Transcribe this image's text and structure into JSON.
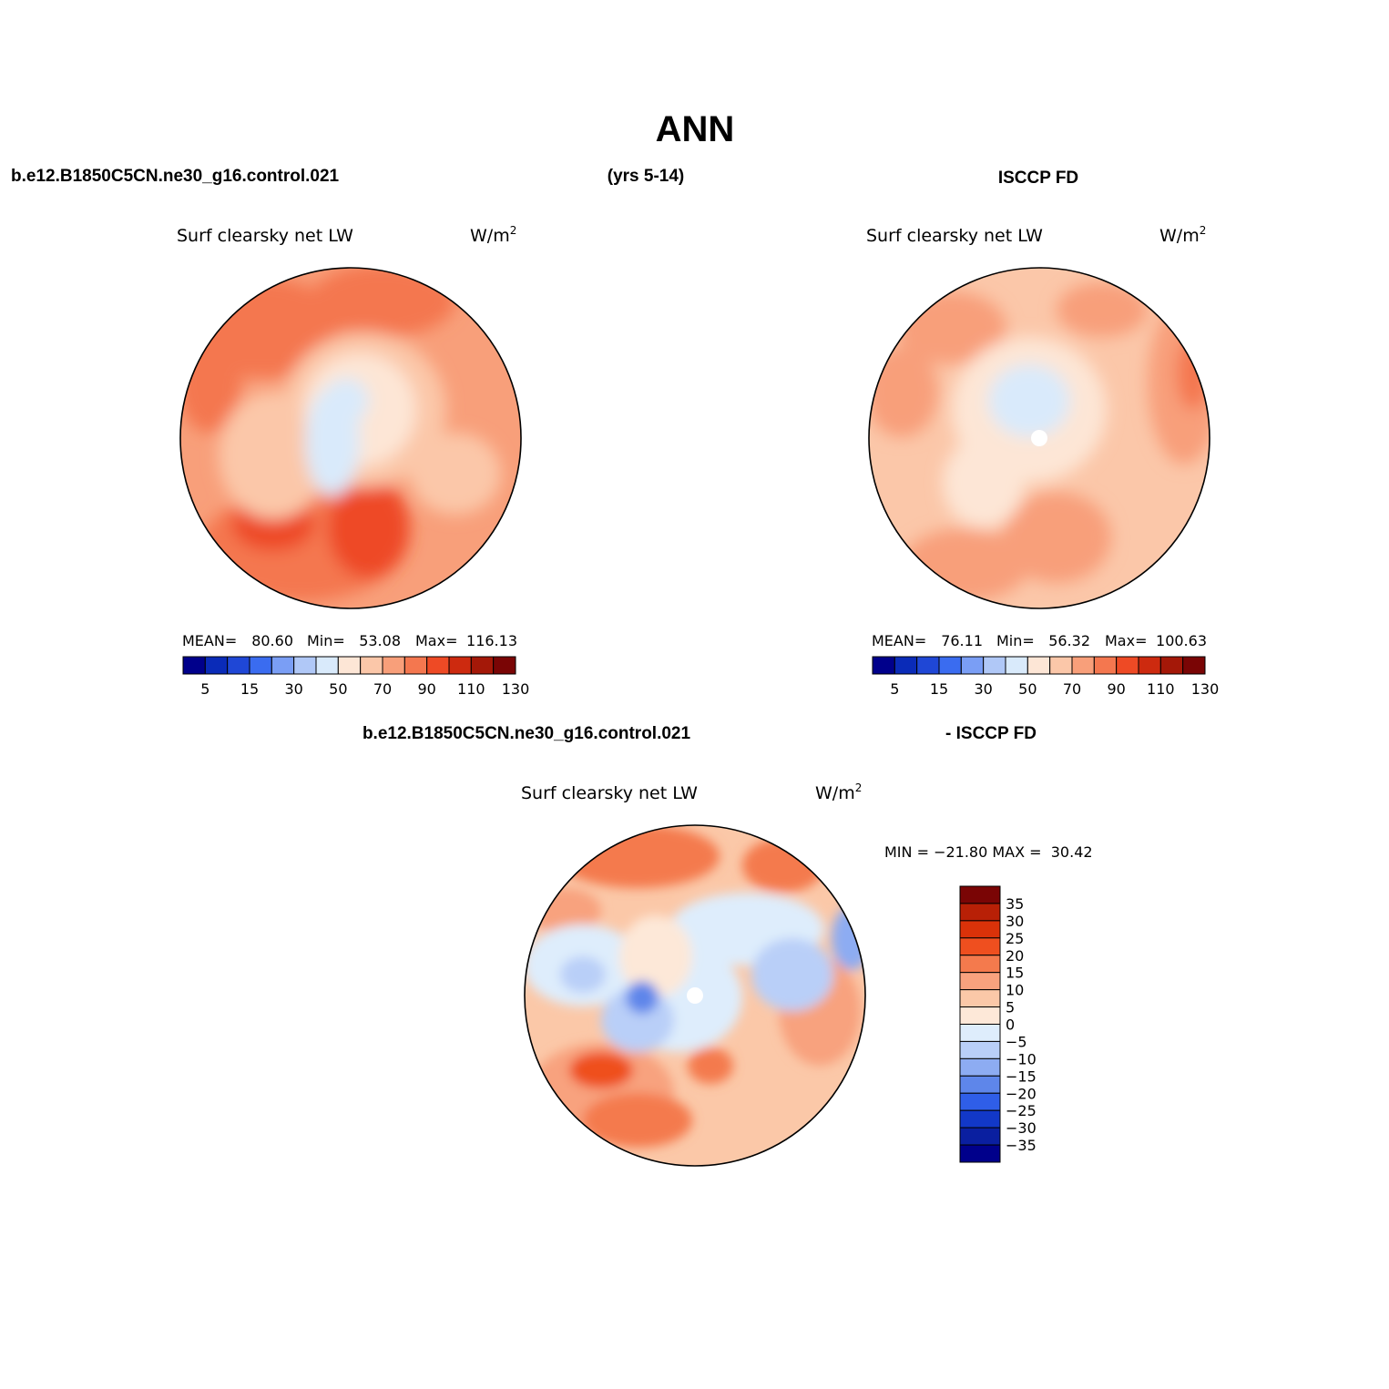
{
  "figure": {
    "main_title": "ANN",
    "top_left_header": "b.e12.B1850C5CN.ne30_g16.control.021",
    "top_center_header": "(yrs 5-14)",
    "top_right_header": "ISCCP FD",
    "bottom_header_left": "b.e12.B1850C5CN.ne30_g16.control.021",
    "bottom_header_right": "- ISCCP FD"
  },
  "panels": [
    {
      "variable": "Surf clearsky net LW",
      "units": "W/m",
      "units_sup": "2",
      "mean_label": "MEAN=",
      "mean": "80.60",
      "min_label": "Min=",
      "min": "53.08",
      "max_label": "Max=",
      "max": "116.13"
    },
    {
      "variable": "Surf clearsky net LW",
      "units": "W/m",
      "units_sup": "2",
      "mean_label": "MEAN=",
      "mean": "76.11",
      "min_label": "Min=",
      "min": "56.32",
      "max_label": "Max=",
      "max": "100.63"
    },
    {
      "variable": "Surf clearsky net LW",
      "units": "W/m",
      "units_sup": "2",
      "minmax_text": "MIN = −21.80 MAX =  30.42"
    }
  ],
  "field_colorbar": {
    "colors": [
      "#00008b",
      "#0a2bb8",
      "#1f47d6",
      "#3a6cf0",
      "#7a9ef5",
      "#b0c8f7",
      "#d9eafb",
      "#fde6d6",
      "#fbc7a9",
      "#f89f7a",
      "#f4774f",
      "#ee4a25",
      "#cd2a0f",
      "#a41808",
      "#7a0505"
    ],
    "tick_labels": [
      "5",
      "15",
      "30",
      "50",
      "70",
      "90",
      "110",
      "130"
    ]
  },
  "diff_colorbar": {
    "colors": [
      "#7a0505",
      "#b82006",
      "#da3209",
      "#ef4f1f",
      "#f47a4d",
      "#f8a27e",
      "#fbc8a8",
      "#fde8d8",
      "#deedfc",
      "#b9cff8",
      "#8dacf2",
      "#5e86ea",
      "#2f5ee8",
      "#1238c8",
      "#0a1fa0",
      "#00008b"
    ],
    "tick_labels": [
      "35",
      "30",
      "25",
      "20",
      "15",
      "10",
      "5",
      "0",
      "−5",
      "−10",
      "−15",
      "−20",
      "−25",
      "−30",
      "−35"
    ]
  }
}
